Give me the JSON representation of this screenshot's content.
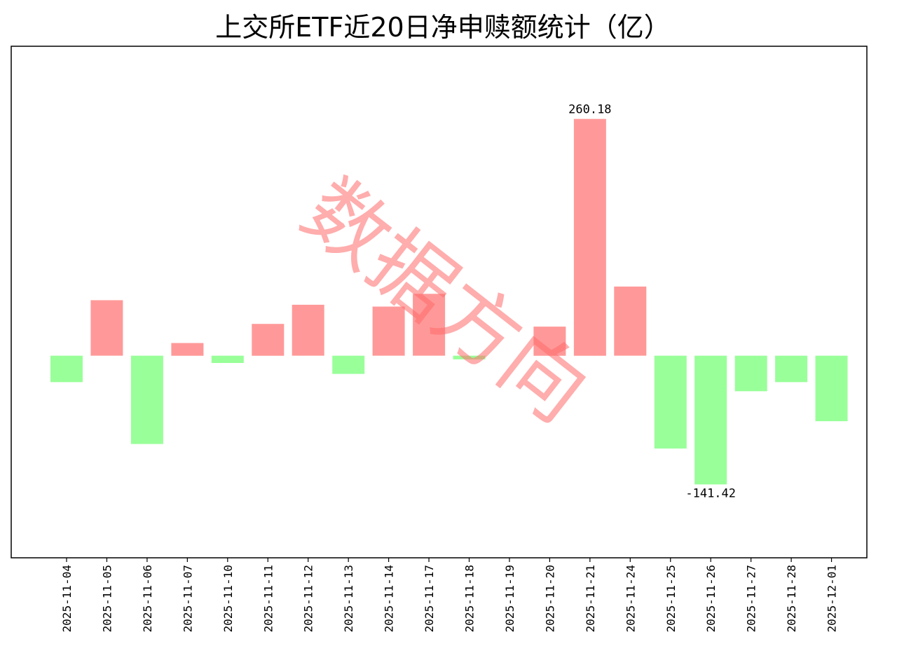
{
  "chart_data": {
    "type": "bar",
    "title": "上交所ETF近20日净申赎额统计（亿）",
    "categories": [
      "2025-11-04",
      "2025-11-05",
      "2025-11-06",
      "2025-11-07",
      "2025-11-10",
      "2025-11-11",
      "2025-11-12",
      "2025-11-13",
      "2025-11-14",
      "2025-11-17",
      "2025-11-18",
      "2025-11-19",
      "2025-11-20",
      "2025-11-21",
      "2025-11-24",
      "2025-11-25",
      "2025-11-26",
      "2025-11-27",
      "2025-11-28",
      "2025-12-01"
    ],
    "values": [
      -29,
      61,
      -97,
      14,
      -8,
      35,
      56,
      -20,
      54,
      68,
      -4,
      0,
      32,
      260.18,
      76,
      -102,
      -141.42,
      -39,
      -29,
      -72
    ],
    "annotations": [
      {
        "category": "2025-11-21",
        "text": "260.18"
      },
      {
        "category": "2025-11-26",
        "text": "-141.42"
      }
    ],
    "colors": {
      "positive": "#ff9999",
      "negative": "#99ff99",
      "watermark": "#ff6b6b"
    },
    "ylim": [
      -222,
      340
    ],
    "y_axis_shown": false,
    "grid": false
  },
  "watermark": {
    "text": "数据方向"
  }
}
